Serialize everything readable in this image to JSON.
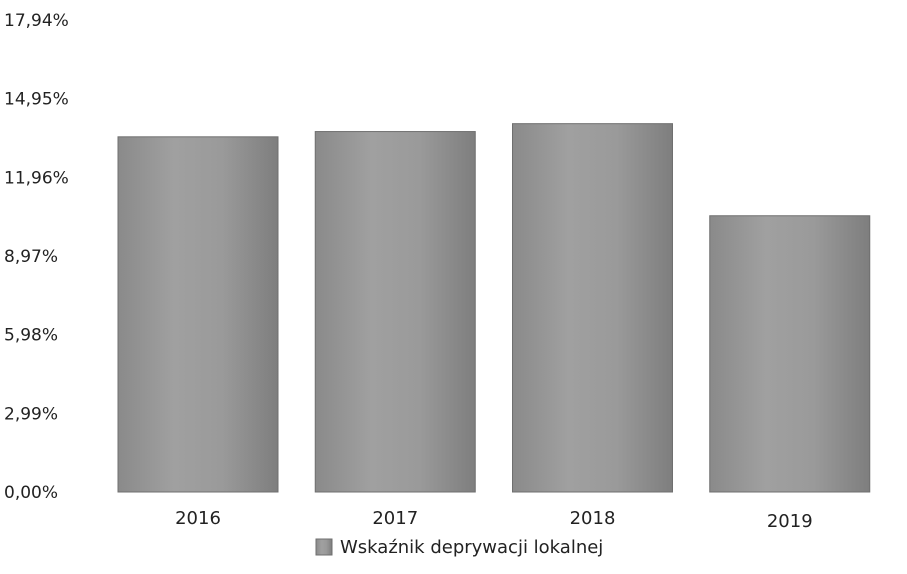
{
  "chart_data": {
    "type": "bar",
    "categories": [
      "2016",
      "2017",
      "2018",
      "2019"
    ],
    "series": [
      {
        "name": "Wskaźnik deprywacji lokalnej",
        "values": [
          13.5,
          13.7,
          14.0,
          10.5
        ]
      }
    ],
    "yticks": [
      "0,00%",
      "2,99%",
      "5,98%",
      "8,97%",
      "11,96%",
      "14,95%",
      "17,94%"
    ],
    "ylim": [
      0,
      17.94
    ],
    "grid": false,
    "legend_position": "bottom-center",
    "colors": {
      "bar": "#8f8f8f",
      "bar_edge": "#6f6f6f",
      "text": "#222222"
    }
  }
}
